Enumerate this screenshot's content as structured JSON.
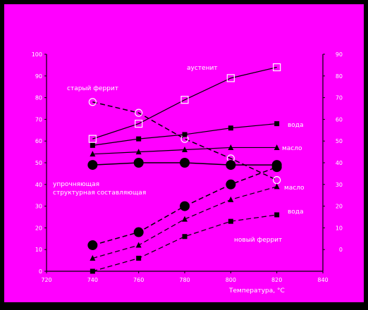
{
  "colors": {
    "outer_frame": "#000000",
    "plot_background": "#ff00ff",
    "ink": "#000000",
    "label_text": "#ffffff"
  },
  "chart_data": {
    "type": "line",
    "title": "",
    "xlabel": "Температура, °С",
    "ylabel_left": "",
    "ylabel_right": "",
    "xlim": [
      720,
      840
    ],
    "ylim_left": [
      0,
      100
    ],
    "ylim_right": [
      -10,
      90
    ],
    "x_ticks": [
      "720",
      "740",
      "760",
      "780",
      "800",
      "820",
      "840"
    ],
    "y_ticks_left": [
      "0",
      "10",
      "20",
      "30",
      "40",
      "50",
      "60",
      "70",
      "80",
      "90",
      "100"
    ],
    "y_ticks_right": [
      "0",
      "10",
      "20",
      "30",
      "40",
      "50",
      "60",
      "70",
      "80",
      "90"
    ],
    "grid": "none",
    "legend": "none",
    "series": [
      {
        "name": "аустенит",
        "axis": "right",
        "marker": "open-square",
        "line": "solid",
        "x": [
          740,
          760,
          780,
          800,
          820
        ],
        "y": [
          51,
          58,
          69,
          79,
          84
        ]
      },
      {
        "name": "старый феррит",
        "axis": "left",
        "marker": "open-circle",
        "line": "dashed",
        "x": [
          740,
          760,
          780,
          800,
          820
        ],
        "y": [
          78,
          73,
          61,
          52,
          42
        ]
      },
      {
        "name": "вода",
        "axis": "left",
        "marker": "filled-square",
        "line": "solid",
        "x": [
          740,
          760,
          780,
          800,
          820
        ],
        "y": [
          58,
          61,
          63,
          66,
          68
        ]
      },
      {
        "name": "масло",
        "axis": "left",
        "marker": "filled-triangle",
        "line": "solid",
        "x": [
          740,
          760,
          780,
          800,
          820
        ],
        "y": [
          54,
          55,
          56,
          57,
          57
        ]
      },
      {
        "name": "упрочняющая структурная составляющая",
        "axis": "left",
        "marker": "filled-circle",
        "line": "solid",
        "x": [
          740,
          760,
          780,
          800,
          820
        ],
        "y": [
          49,
          50,
          50,
          49,
          49
        ]
      },
      {
        "name": "упрочняющая структурная составляющая",
        "axis": "left",
        "marker": "filled-circle",
        "line": "dashed",
        "x": [
          740,
          760,
          780,
          800,
          820
        ],
        "y": [
          12,
          18,
          30,
          40,
          48
        ]
      },
      {
        "name": "масло",
        "axis": "left",
        "marker": "filled-triangle",
        "line": "dashed",
        "x": [
          740,
          760,
          780,
          800,
          820
        ],
        "y": [
          6,
          12,
          24,
          33,
          39
        ]
      },
      {
        "name": "вода",
        "axis": "left",
        "marker": "filled-square",
        "line": "dashed",
        "x": [
          740,
          760,
          780,
          800,
          820
        ],
        "y": [
          0,
          6,
          16,
          23,
          26
        ]
      }
    ],
    "annotations": {
      "austenite": "аустенит",
      "old_ferrite": "старый феррит",
      "water_top": "вода",
      "oil_top": "масло",
      "strengthening": [
        "упрочняющая",
        "структурная составляющая"
      ],
      "oil_bottom": "масло",
      "water_bottom": "вода",
      "new_ferrite": "новый феррит"
    }
  }
}
